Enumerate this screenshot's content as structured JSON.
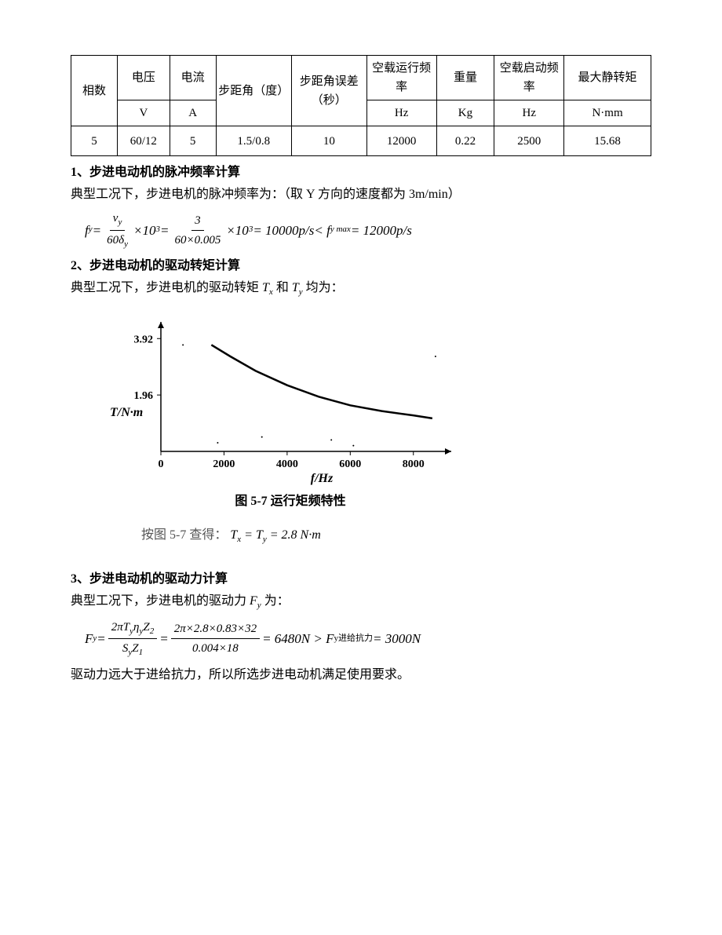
{
  "table": {
    "columns": [
      "相数",
      "电压",
      "电流",
      "步距角（度）",
      "步距角误差（秒）",
      "空载运行频率",
      "重量",
      "空载启动频率",
      "最大静转矩"
    ],
    "units": [
      "",
      "V",
      "A",
      "",
      "",
      "Hz",
      "Kg",
      "Hz",
      "N·mm"
    ],
    "rows": [
      [
        "5",
        "60/12",
        "5",
        "1.5/0.8",
        "10",
        "12000",
        "0.22",
        "2500",
        "15.68"
      ]
    ],
    "col_widths_pct": [
      8,
      9,
      8,
      13,
      13,
      12,
      10,
      12,
      15
    ],
    "border_color": "#000000",
    "font_size": 15
  },
  "section1": {
    "heading": "1、步进电动机的脉冲频率计算",
    "text": "典型工况下，步进电机的脉冲频率为：（取 Y 方向的速度都为 3m/min）",
    "formula_parts": {
      "lhs": "f",
      "lhs_sub": "y",
      "eq1": " = ",
      "frac1_num": "v",
      "frac1_num_sub": "y",
      "frac1_den": "60δ",
      "frac1_den_sub": "y",
      "mult1": "×10",
      "mult1_sup": "3",
      "eq2": " = ",
      "frac2_num": "3",
      "frac2_den": "60×0.005",
      "mult2": "×10",
      "mult2_sup": "3",
      "eq3": " = 10000",
      "ps1": "p/s",
      "lt": " < f",
      "lt_sub": "y max",
      "eq4": " = 12000",
      "ps2": "p/s"
    }
  },
  "section2": {
    "heading": "2、步进电动机的驱动转矩计算",
    "text_pre": "典型工况下，步进电机的驱动转矩",
    "var1": "T",
    "var1_sub": "x",
    "and": "和",
    "var2": "T",
    "var2_sub": "y",
    "text_post": "均为："
  },
  "chart": {
    "type": "line",
    "x_label": "f/Hz",
    "y_label": "T/N·m",
    "x_ticks": [
      0,
      2000,
      4000,
      6000,
      8000
    ],
    "y_ticks": [
      1.96,
      3.92
    ],
    "xlim": [
      0,
      9200
    ],
    "ylim": [
      0,
      4.5
    ],
    "curve_points": [
      [
        1600,
        3.7
      ],
      [
        2200,
        3.3
      ],
      [
        3000,
        2.8
      ],
      [
        4000,
        2.3
      ],
      [
        5000,
        1.9
      ],
      [
        6000,
        1.6
      ],
      [
        7000,
        1.4
      ],
      [
        8000,
        1.25
      ],
      [
        8600,
        1.15
      ]
    ],
    "line_color": "#000000",
    "line_width": 2.5,
    "background_color": "#ffffff",
    "axis_color": "#000000",
    "tick_fontsize": 14,
    "label_fontsize": 16,
    "caption": "图 5-7  运行矩频特性",
    "dots": [
      [
        700,
        3.7
      ],
      [
        3200,
        0.5
      ],
      [
        5400,
        0.4
      ],
      [
        8700,
        3.3
      ],
      [
        1800,
        0.3
      ],
      [
        6100,
        0.2
      ]
    ]
  },
  "lookup": {
    "pre": "按图 5-7 查得：",
    "eq": "T",
    "eq_sub1": "x",
    "mid": " = T",
    "eq_sub2": "y",
    "val": " = 2.8 N·m"
  },
  "section3": {
    "heading": "3、步进电动机的驱动力计算",
    "text_pre": "典型工况下，步进电机的驱动力",
    "var": "F",
    "var_sub": "y",
    "text_post": "为：",
    "formula": {
      "lhs": "F",
      "lhs_sub": "y",
      "eq1": " = ",
      "frac1_num": "2πT",
      "frac1_num_sub1": "y",
      "frac1_num2": "η",
      "frac1_num_sub2": "y",
      "frac1_num3": "Z",
      "frac1_num_sub3": "2",
      "frac1_den": "S",
      "frac1_den_sub1": "y",
      "frac1_den2": "Z",
      "frac1_den_sub2": "1",
      "eq2": " = ",
      "frac2_num": "2π×2.8×0.83×32",
      "frac2_den": "0.004×18",
      "eq3": " = 6480N > F",
      "eq3_sub": "y进给抗力",
      "eq4": " = 3000N"
    },
    "conclusion": "驱动力远大于进给抗力，所以所选步进电动机满足使用要求。"
  }
}
